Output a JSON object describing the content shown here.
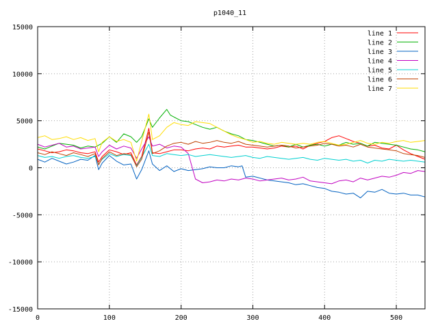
{
  "chart_data": {
    "type": "line",
    "title": "p1040_11",
    "xlabel": "",
    "ylabel": "",
    "xlim": [
      0,
      540
    ],
    "ylim": [
      -15000,
      15000
    ],
    "xticks": [
      0,
      100,
      200,
      300,
      400,
      500
    ],
    "yticks": [
      15000,
      10000,
      5000,
      0,
      -5000,
      -10000,
      -15000
    ],
    "grid": true,
    "legend_position": "top-right",
    "series": [
      {
        "name": "line 1",
        "color": "#ff0000",
        "x": [
          0,
          10,
          20,
          30,
          40,
          50,
          60,
          70,
          80,
          85,
          90,
          100,
          110,
          120,
          130,
          138,
          145,
          155,
          160,
          170,
          180,
          190,
          200,
          210,
          220,
          230,
          240,
          250,
          260,
          270,
          280,
          290,
          300,
          310,
          320,
          330,
          340,
          350,
          360,
          370,
          380,
          390,
          400,
          410,
          420,
          430,
          440,
          450,
          460,
          470,
          480,
          490,
          500,
          510,
          520,
          530,
          540
        ],
        "y": [
          2000,
          1800,
          1600,
          1700,
          1900,
          1800,
          1600,
          1500,
          1700,
          600,
          1200,
          1900,
          1700,
          1400,
          1600,
          300,
          1200,
          4200,
          1600,
          1500,
          1700,
          1900,
          1900,
          1800,
          2000,
          2100,
          2000,
          2300,
          2200,
          2300,
          2400,
          2200,
          2200,
          2100,
          2000,
          2100,
          2300,
          2200,
          2300,
          2000,
          2400,
          2600,
          2800,
          3200,
          3400,
          3100,
          2800,
          2600,
          2300,
          2400,
          2100,
          2000,
          2400,
          1900,
          1500,
          1200,
          900
        ]
      },
      {
        "name": "line 2",
        "color": "#00b000",
        "x": [
          0,
          10,
          20,
          30,
          40,
          50,
          60,
          70,
          80,
          90,
          100,
          110,
          120,
          130,
          138,
          145,
          155,
          160,
          170,
          180,
          185,
          190,
          200,
          210,
          220,
          230,
          240,
          250,
          260,
          270,
          280,
          290,
          300,
          310,
          320,
          330,
          340,
          350,
          360,
          370,
          380,
          390,
          400,
          410,
          420,
          430,
          440,
          450,
          460,
          470,
          480,
          490,
          500,
          510,
          520,
          530,
          540
        ],
        "y": [
          2200,
          2000,
          2300,
          2600,
          2500,
          2400,
          2100,
          2300,
          2200,
          2600,
          3300,
          2700,
          3600,
          3300,
          2700,
          3300,
          5200,
          4300,
          5300,
          6200,
          5600,
          5400,
          5000,
          4900,
          4600,
          4300,
          4100,
          4300,
          3900,
          3600,
          3400,
          3000,
          2900,
          2700,
          2500,
          2300,
          2400,
          2200,
          2500,
          2200,
          2400,
          2500,
          2300,
          2500,
          2400,
          2700,
          2500,
          2600,
          2300,
          2700,
          2600,
          2500,
          2400,
          2200,
          2000,
          1900,
          1700
        ]
      },
      {
        "name": "line 3",
        "color": "#0060c0",
        "x": [
          0,
          10,
          20,
          30,
          40,
          50,
          60,
          70,
          80,
          85,
          90,
          100,
          110,
          120,
          130,
          138,
          145,
          155,
          160,
          170,
          180,
          190,
          200,
          210,
          220,
          230,
          240,
          250,
          260,
          270,
          280,
          285,
          290,
          300,
          310,
          320,
          330,
          340,
          350,
          360,
          370,
          380,
          390,
          400,
          410,
          420,
          430,
          440,
          450,
          460,
          470,
          480,
          490,
          500,
          510,
          520,
          530,
          540
        ],
        "y": [
          900,
          600,
          1000,
          700,
          400,
          600,
          900,
          800,
          1300,
          -200,
          500,
          1300,
          700,
          300,
          400,
          -1200,
          -200,
          1800,
          400,
          -300,
          200,
          -400,
          -100,
          -300,
          -200,
          -100,
          100,
          0,
          0,
          200,
          100,
          200,
          -1000,
          -900,
          -1100,
          -1300,
          -1400,
          -1500,
          -1600,
          -1800,
          -1700,
          -1900,
          -2100,
          -2200,
          -2500,
          -2600,
          -2800,
          -2700,
          -3200,
          -2500,
          -2600,
          -2300,
          -2700,
          -2800,
          -2700,
          -2900,
          -2900,
          -3100
        ]
      },
      {
        "name": "line 4",
        "color": "#c000c0",
        "x": [
          0,
          10,
          20,
          30,
          40,
          50,
          60,
          70,
          80,
          85,
          90,
          100,
          110,
          120,
          130,
          138,
          145,
          155,
          160,
          170,
          180,
          190,
          200,
          210,
          220,
          230,
          240,
          250,
          260,
          270,
          280,
          290,
          300,
          310,
          320,
          330,
          340,
          350,
          360,
          370,
          380,
          390,
          400,
          410,
          420,
          430,
          440,
          450,
          460,
          470,
          480,
          490,
          500,
          510,
          520,
          530,
          540
        ],
        "y": [
          2500,
          2200,
          2400,
          2600,
          2200,
          2300,
          2000,
          2100,
          2200,
          1200,
          1700,
          2400,
          2000,
          2300,
          2100,
          1000,
          2000,
          3300,
          2300,
          2500,
          2100,
          2300,
          2200,
          1500,
          -1200,
          -1600,
          -1500,
          -1300,
          -1400,
          -1200,
          -1300,
          -1100,
          -1200,
          -1400,
          -1300,
          -1200,
          -1100,
          -1300,
          -1200,
          -1000,
          -1400,
          -1500,
          -1600,
          -1700,
          -1400,
          -1300,
          -1500,
          -1100,
          -1300,
          -1100,
          -900,
          -1000,
          -800,
          -500,
          -600,
          -300,
          -400
        ]
      },
      {
        "name": "line 5",
        "color": "#00d0d0",
        "x": [
          0,
          10,
          20,
          30,
          40,
          50,
          60,
          70,
          80,
          85,
          90,
          100,
          110,
          120,
          130,
          138,
          145,
          155,
          160,
          170,
          180,
          190,
          200,
          210,
          220,
          230,
          240,
          250,
          260,
          270,
          280,
          290,
          300,
          310,
          320,
          330,
          340,
          350,
          360,
          370,
          380,
          390,
          400,
          410,
          420,
          430,
          440,
          450,
          460,
          470,
          480,
          490,
          500,
          510,
          520,
          530,
          540
        ],
        "y": [
          1300,
          1100,
          1200,
          1000,
          1200,
          1300,
          1100,
          1000,
          1200,
          400,
          900,
          1500,
          1200,
          1400,
          1300,
          200,
          1100,
          2500,
          1300,
          1200,
          1500,
          1400,
          1300,
          1400,
          1200,
          1300,
          1400,
          1300,
          1200,
          1100,
          1200,
          1300,
          1100,
          1000,
          1200,
          1100,
          1000,
          900,
          1000,
          1100,
          900,
          800,
          1000,
          900,
          800,
          900,
          700,
          800,
          500,
          800,
          700,
          900,
          800,
          700,
          800,
          700,
          600
        ]
      },
      {
        "name": "line 6",
        "color": "#c04000",
        "x": [
          0,
          10,
          20,
          30,
          40,
          50,
          60,
          70,
          80,
          85,
          90,
          100,
          110,
          120,
          130,
          138,
          145,
          155,
          160,
          170,
          180,
          190,
          200,
          210,
          220,
          230,
          240,
          250,
          260,
          270,
          280,
          290,
          300,
          310,
          320,
          330,
          340,
          350,
          360,
          370,
          380,
          390,
          400,
          410,
          420,
          430,
          440,
          450,
          460,
          470,
          480,
          490,
          500,
          510,
          520,
          530,
          540
        ],
        "y": [
          1600,
          1400,
          1700,
          1500,
          1300,
          1600,
          1400,
          1200,
          1500,
          300,
          1000,
          1700,
          1300,
          1500,
          1400,
          100,
          900,
          3800,
          1500,
          1800,
          2300,
          2600,
          2700,
          2500,
          2800,
          2600,
          2700,
          2900,
          2700,
          2600,
          2800,
          2500,
          2400,
          2300,
          2200,
          2300,
          2400,
          2300,
          2100,
          2200,
          2300,
          2400,
          2600,
          2500,
          2300,
          2400,
          2200,
          2500,
          2200,
          2100,
          2000,
          1900,
          1800,
          1500,
          1400,
          1300,
          1100
        ]
      },
      {
        "name": "line 7",
        "color": "#ffdd00",
        "x": [
          0,
          10,
          20,
          30,
          40,
          50,
          60,
          70,
          80,
          85,
          90,
          100,
          110,
          120,
          130,
          138,
          145,
          155,
          160,
          170,
          180,
          190,
          200,
          210,
          220,
          230,
          240,
          250,
          260,
          270,
          280,
          290,
          300,
          310,
          320,
          330,
          340,
          350,
          360,
          370,
          380,
          390,
          400,
          410,
          420,
          430,
          440,
          450,
          460,
          470,
          480,
          490,
          500,
          510,
          520,
          530,
          540
        ],
        "y": [
          3200,
          3400,
          3000,
          3100,
          3300,
          3000,
          3200,
          2900,
          3100,
          1700,
          2700,
          3300,
          2800,
          3000,
          2700,
          700,
          2800,
          5700,
          3000,
          3400,
          4300,
          4800,
          4600,
          4500,
          4900,
          4800,
          4700,
          4300,
          3900,
          3500,
          3200,
          3000,
          2700,
          2800,
          2600,
          2500,
          2700,
          2600,
          2500,
          2600,
          2500,
          2700,
          2800,
          2600,
          2400,
          2500,
          2700,
          2900,
          2600,
          2500,
          2700,
          2600,
          2800,
          2900,
          2700,
          2800,
          2900
        ]
      }
    ]
  }
}
